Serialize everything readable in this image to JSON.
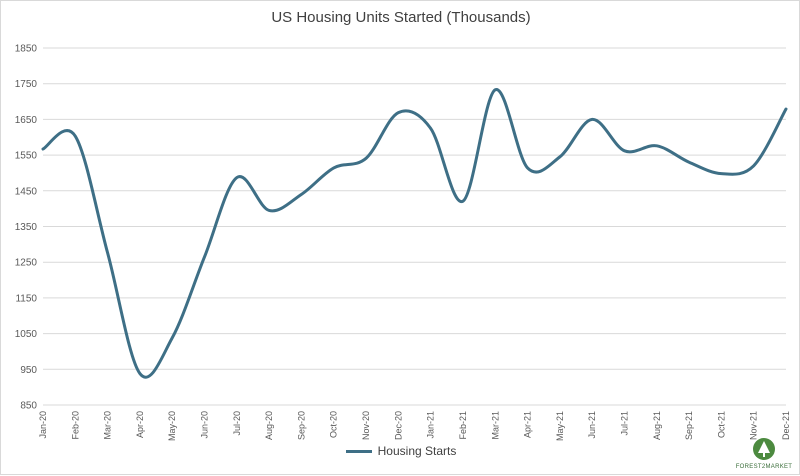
{
  "chart_data": {
    "type": "line",
    "title": "US Housing Units Started (Thousands)",
    "xlabel": "",
    "ylabel": "",
    "ylim": [
      850,
      1850
    ],
    "yticks": [
      850,
      950,
      1050,
      1150,
      1250,
      1350,
      1450,
      1550,
      1650,
      1750,
      1850
    ],
    "categories": [
      "Jan-20",
      "Feb-20",
      "Mar-20",
      "Apr-20",
      "May-20",
      "Jun-20",
      "Jul-20",
      "Aug-20",
      "Sep-20",
      "Oct-20",
      "Nov-20",
      "Dec-20",
      "Jan-21",
      "Feb-21",
      "Mar-21",
      "Apr-21",
      "May-21",
      "Jun-21",
      "Jul-21",
      "Aug-21",
      "Sep-21",
      "Oct-21",
      "Nov-21",
      "Dec-21"
    ],
    "series": [
      {
        "name": "Housing Starts",
        "color": "#3e6f86",
        "values": [
          1567,
          1603,
          1276,
          938,
          1038,
          1265,
          1487,
          1395,
          1440,
          1514,
          1541,
          1669,
          1625,
          1421,
          1733,
          1514,
          1545,
          1650,
          1562,
          1576,
          1530,
          1498,
          1520,
          1679
        ]
      }
    ],
    "grid": true,
    "legend": "bottom"
  },
  "logo": {
    "text": "FOREST2MARKET"
  }
}
